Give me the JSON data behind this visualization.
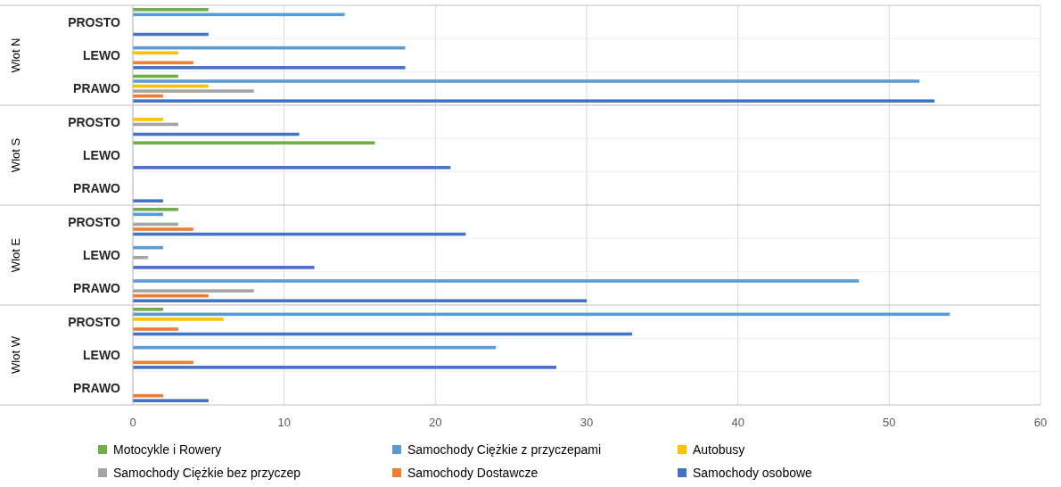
{
  "chart_data": {
    "type": "bar",
    "orientation": "horizontal",
    "categories": [
      "PROSTO",
      "LEWO",
      "PRAWO",
      "PROSTO",
      "LEWO",
      "PRAWO",
      "PROSTO",
      "LEWO",
      "PRAWO",
      "PROSTO",
      "LEWO",
      "PRAWO"
    ],
    "annotations": [
      "Wlot N",
      "Wlot S",
      "Wlot E",
      "Wlot W"
    ],
    "series": [
      {
        "name": "Motocykle i Rowery",
        "color": "#70ad47",
        "values": [
          5,
          null,
          3,
          null,
          16,
          null,
          3,
          null,
          null,
          2,
          null,
          null
        ]
      },
      {
        "name": "Samochody Ciężkie z przyczepami",
        "color": "#5b9bd5",
        "values": [
          14,
          18,
          52,
          null,
          null,
          null,
          2,
          2,
          48,
          54,
          24,
          null
        ]
      },
      {
        "name": "Autobusy",
        "color": "#ffc000",
        "values": [
          null,
          3,
          5,
          2,
          null,
          null,
          null,
          null,
          null,
          6,
          null,
          null
        ]
      },
      {
        "name": "Samochody Ciężkie bez przyczep",
        "color": "#a5a5a5",
        "values": [
          null,
          null,
          8,
          3,
          null,
          null,
          3,
          1,
          8,
          null,
          null,
          null
        ]
      },
      {
        "name": "Samochody Dostawcze",
        "color": "#ed7d31",
        "values": [
          null,
          4,
          2,
          null,
          null,
          null,
          4,
          null,
          5,
          3,
          4,
          2
        ]
      },
      {
        "name": "Samochody osobowe",
        "color": "#4472c4",
        "values": [
          5,
          18,
          53,
          11,
          21,
          2,
          22,
          12,
          30,
          33,
          28,
          5
        ]
      }
    ],
    "xlim": [
      0,
      60
    ],
    "xticks": [
      0,
      10,
      20,
      30,
      40,
      50,
      60
    ],
    "grid": "x",
    "legend": "bottom"
  }
}
